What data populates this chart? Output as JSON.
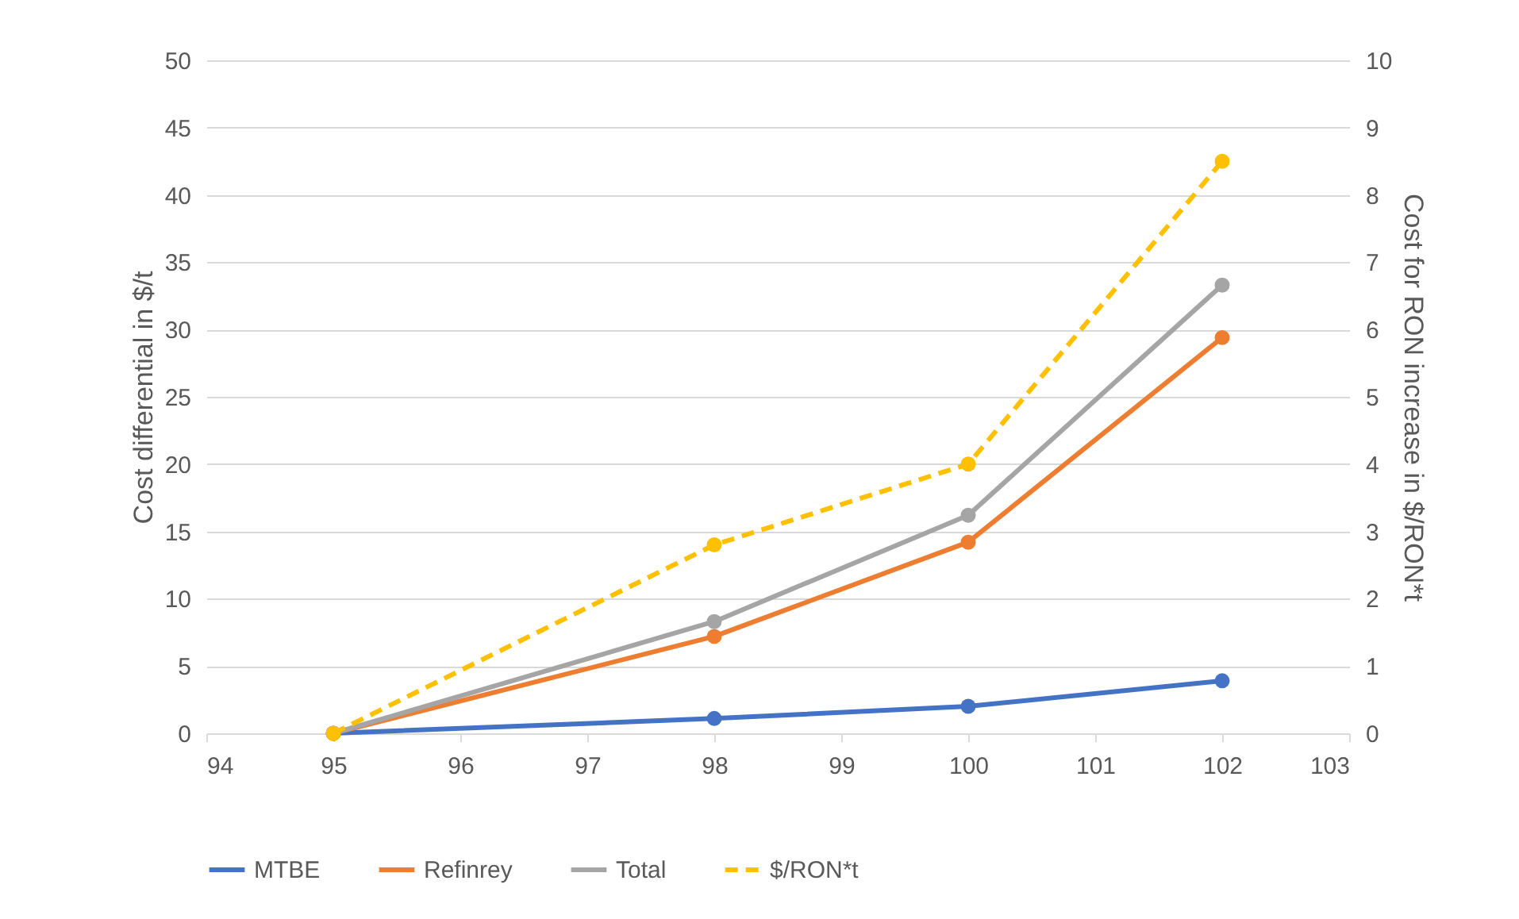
{
  "chart_data": {
    "type": "line",
    "x": [
      95,
      98,
      100,
      102
    ],
    "ylabel": "Cost differential in $/t",
    "y2label": "Cost for RON increase in $/RON*t",
    "series": [
      {
        "name": "MTBE",
        "color": "#4472c4",
        "values": [
          0,
          1.1,
          2.0,
          3.9
        ]
      },
      {
        "name": "Refinrey",
        "color": "#ed7d31",
        "values": [
          0,
          7.2,
          14.2,
          29.4
        ]
      },
      {
        "name": "Total",
        "color": "#a5a5a5",
        "values": [
          0,
          8.3,
          16.2,
          33.3
        ]
      },
      {
        "name": "$/RON*t",
        "color": "#ffc000",
        "values": [
          0,
          2.8,
          4.0,
          8.5
        ],
        "axis": "y2",
        "line_style": "dashed"
      }
    ],
    "xlim": [
      94,
      103
    ],
    "xticks": [
      94,
      95,
      96,
      97,
      98,
      99,
      100,
      101,
      102,
      103
    ],
    "ylim": [
      0,
      50
    ],
    "yticks": [
      0,
      5,
      10,
      15,
      20,
      25,
      30,
      35,
      40,
      45,
      50
    ],
    "y2lim": [
      0,
      10
    ],
    "y2ticks": [
      0,
      1,
      2,
      3,
      4,
      5,
      6,
      7,
      8,
      9,
      10
    ],
    "grid": "y",
    "legend": "bottom",
    "marker": "circle",
    "line_style": "solid"
  }
}
